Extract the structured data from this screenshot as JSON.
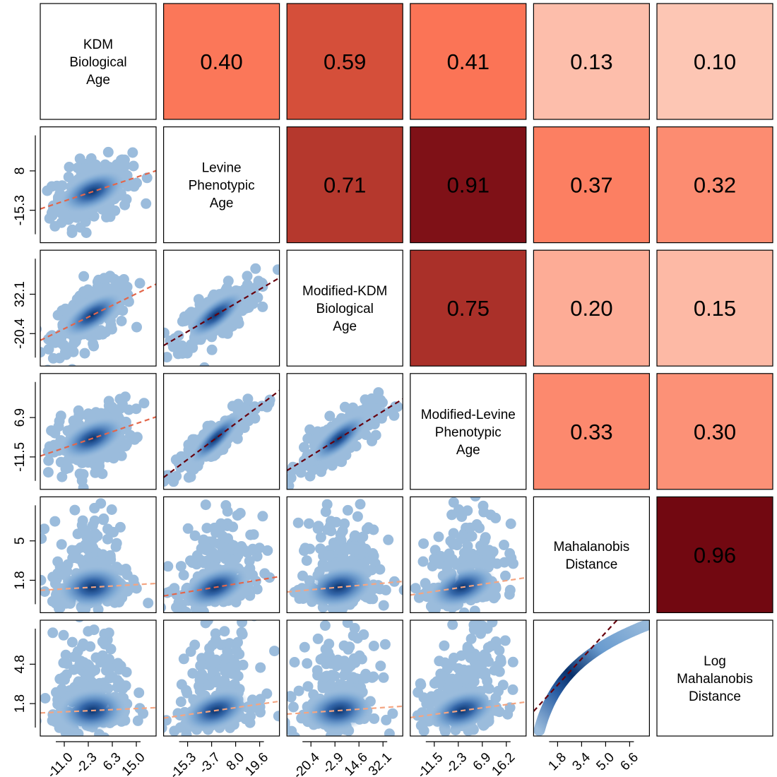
{
  "chart_data": {
    "type": "scatter",
    "subtype": "correlation-pairs-matrix",
    "variables": [
      "KDM Biological Age",
      "Levine Phenotypic Age",
      "Modified-KDM Biological Age",
      "Modified-Levine Phenotypic Age",
      "Mahalanobis Distance",
      "Log Mahalanobis Distance"
    ],
    "diagonal_labels": [
      [
        "KDM",
        "Biological",
        "Age"
      ],
      [
        "Levine",
        "Phenotypic",
        "Age"
      ],
      [
        "Modified-KDM",
        "Biological",
        "Age"
      ],
      [
        "Modified-Levine",
        "Phenotypic",
        "Age"
      ],
      [
        "Mahalanobis",
        "Distance"
      ],
      [
        "Log",
        "Mahalanobis",
        "Distance"
      ]
    ],
    "correlations": [
      {
        "row": 0,
        "col": 1,
        "value": 0.4,
        "label": "0.40"
      },
      {
        "row": 0,
        "col": 2,
        "value": 0.59,
        "label": "0.59"
      },
      {
        "row": 0,
        "col": 3,
        "value": 0.41,
        "label": "0.41"
      },
      {
        "row": 0,
        "col": 4,
        "value": 0.13,
        "label": "0.13"
      },
      {
        "row": 0,
        "col": 5,
        "value": 0.1,
        "label": "0.10"
      },
      {
        "row": 1,
        "col": 2,
        "value": 0.71,
        "label": "0.71"
      },
      {
        "row": 1,
        "col": 3,
        "value": 0.91,
        "label": "0.91"
      },
      {
        "row": 1,
        "col": 4,
        "value": 0.37,
        "label": "0.37"
      },
      {
        "row": 1,
        "col": 5,
        "value": 0.32,
        "label": "0.32"
      },
      {
        "row": 2,
        "col": 3,
        "value": 0.75,
        "label": "0.75"
      },
      {
        "row": 2,
        "col": 4,
        "value": 0.2,
        "label": "0.20"
      },
      {
        "row": 2,
        "col": 5,
        "value": 0.15,
        "label": "0.15"
      },
      {
        "row": 3,
        "col": 4,
        "value": 0.33,
        "label": "0.33"
      },
      {
        "row": 3,
        "col": 5,
        "value": 0.3,
        "label": "0.30"
      },
      {
        "row": 4,
        "col": 5,
        "value": 0.96,
        "label": "0.96"
      }
    ],
    "x_tick_labels": [
      [
        "-11.0",
        "-2.3",
        "6.3",
        "15.0"
      ],
      [
        "-15.3",
        "-3.7",
        "8.0",
        "19.6"
      ],
      [
        "-20.4",
        "-2.9",
        "14.6",
        "32.1"
      ],
      [
        "-11.5",
        "-2.3",
        "6.9",
        "16.2"
      ],
      [
        "1.8",
        "3.4",
        "5.0",
        "6.6"
      ]
    ],
    "y_tick_labels": [
      [
        "-15.3",
        "8"
      ],
      [
        "-20.4",
        "32.1"
      ],
      [
        "-11.5",
        "6.9"
      ],
      [
        "1.8",
        "5"
      ],
      [
        "1.8",
        "4.8"
      ]
    ],
    "colors": {
      "point_light": "#9bbcdc",
      "point_dark": "#08306b",
      "corr_low": "#fee0d2",
      "corr_mid": "#fb6a4a",
      "corr_high": "#67000d",
      "cell_border": "#000000"
    }
  }
}
